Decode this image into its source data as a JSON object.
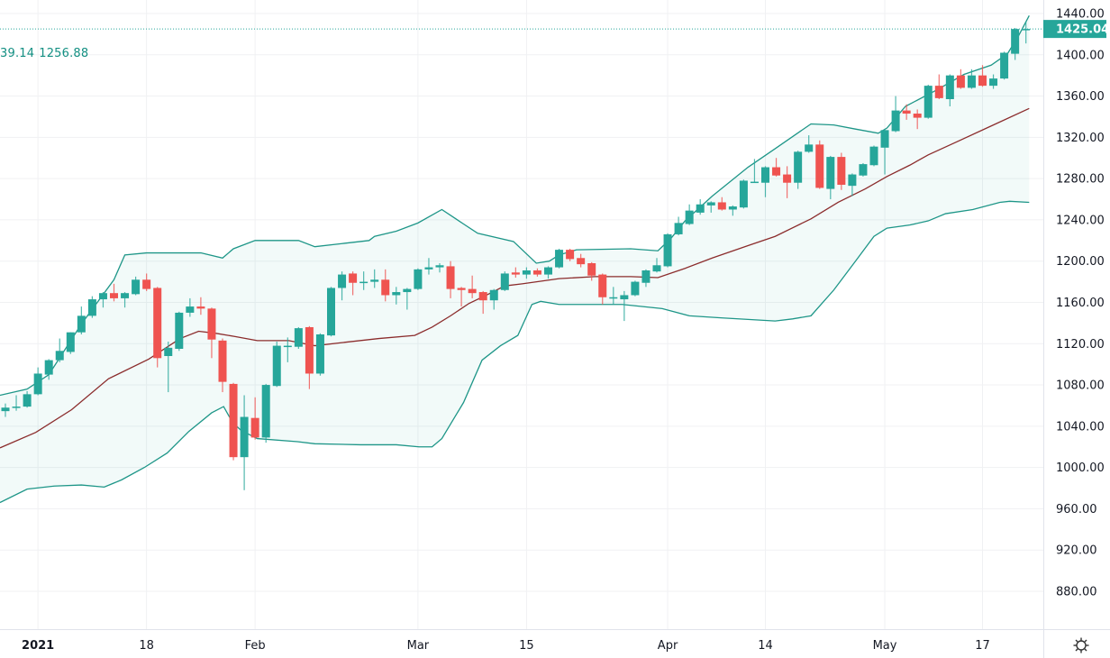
{
  "legend": {
    "values": [
      "39.14",
      "1256.88"
    ]
  },
  "colors": {
    "up": "#26a69a",
    "down": "#ef5350",
    "band": "#1e9688",
    "basis": "#8b2c2c",
    "fill": "#26a69a",
    "last_price_bg": "#26a69a"
  },
  "toolbar": {
    "settings_icon": "gear-icon"
  },
  "chart_data": {
    "type": "candlestick",
    "indicator": "bollinger-bands",
    "grid": true,
    "ylim": [
      860,
      1450
    ],
    "y_ticks": [
      "1440.00",
      "1400.00",
      "1360.00",
      "1320.00",
      "1280.00",
      "1240.00",
      "1200.00",
      "1160.00",
      "1120.00",
      "1080.00",
      "1040.00",
      "1000.00",
      "960.00",
      "920.00",
      "880.00"
    ],
    "last_price": "1425.04",
    "x_ticks": [
      {
        "label": "2021",
        "index": 3,
        "bold": true
      },
      {
        "label": "18",
        "index": 13
      },
      {
        "label": "Feb",
        "index": 23
      },
      {
        "label": "Mar",
        "index": 38
      },
      {
        "label": "15",
        "index": 48
      },
      {
        "label": "Apr",
        "index": 61
      },
      {
        "label": "14",
        "index": 70
      },
      {
        "label": "May",
        "index": 81
      },
      {
        "label": "17",
        "index": 90
      }
    ],
    "ohlc_fields": [
      "open",
      "high",
      "low",
      "close"
    ],
    "candles": [
      [
        1054.6,
        1062,
        1049,
        1058
      ],
      [
        1059,
        1070,
        1055,
        1059
      ],
      [
        1059,
        1074,
        1058,
        1071
      ],
      [
        1071,
        1097,
        1070,
        1091
      ],
      [
        1090,
        1105,
        1085,
        1104
      ],
      [
        1104,
        1125,
        1102,
        1113
      ],
      [
        1112,
        1131,
        1110,
        1131
      ],
      [
        1131,
        1156,
        1129,
        1147
      ],
      [
        1147,
        1166,
        1145,
        1163
      ],
      [
        1163,
        1170,
        1155,
        1169
      ],
      [
        1169,
        1178,
        1161,
        1164
      ],
      [
        1164,
        1170,
        1155,
        1169
      ],
      [
        1168,
        1185,
        1167,
        1182
      ],
      [
        1182,
        1188,
        1171,
        1173
      ],
      [
        1174,
        1175,
        1097,
        1106
      ],
      [
        1108,
        1122,
        1073,
        1116
      ],
      [
        1115,
        1151,
        1113,
        1150
      ],
      [
        1150,
        1164,
        1146,
        1156
      ],
      [
        1156,
        1165,
        1148,
        1154
      ],
      [
        1154,
        1155,
        1106,
        1124
      ],
      [
        1123,
        1125,
        1073,
        1083
      ],
      [
        1081,
        1082,
        1007,
        1010
      ],
      [
        1010,
        1070,
        978,
        1049
      ],
      [
        1048,
        1068,
        1027,
        1029
      ],
      [
        1029,
        1081,
        1024,
        1080
      ],
      [
        1079,
        1122,
        1078,
        1118
      ],
      [
        1118,
        1126,
        1102,
        1118
      ],
      [
        1117,
        1136,
        1115,
        1135
      ],
      [
        1136,
        1137,
        1076,
        1091
      ],
      [
        1091,
        1130,
        1089,
        1129
      ],
      [
        1128,
        1175,
        1127,
        1174
      ],
      [
        1174,
        1190,
        1162,
        1187
      ],
      [
        1188,
        1190,
        1167,
        1179
      ],
      [
        1180,
        1190,
        1172,
        1180
      ],
      [
        1180,
        1192,
        1174,
        1182
      ],
      [
        1182,
        1192,
        1161,
        1167
      ],
      [
        1167,
        1175,
        1158,
        1170
      ],
      [
        1170,
        1174,
        1153,
        1173
      ],
      [
        1173,
        1193,
        1172,
        1192
      ],
      [
        1192,
        1203,
        1187,
        1194
      ],
      [
        1194,
        1198,
        1189,
        1196
      ],
      [
        1195,
        1200,
        1164,
        1173
      ],
      [
        1174,
        1175,
        1156,
        1172
      ],
      [
        1173,
        1186,
        1164,
        1169
      ],
      [
        1170,
        1171,
        1149,
        1162
      ],
      [
        1162,
        1173,
        1153,
        1172
      ],
      [
        1172,
        1190,
        1171,
        1188
      ],
      [
        1189,
        1194,
        1184,
        1187
      ],
      [
        1187,
        1194,
        1183,
        1191
      ],
      [
        1191,
        1193,
        1185,
        1187
      ],
      [
        1187,
        1195,
        1183,
        1194
      ],
      [
        1194,
        1212,
        1193,
        1211
      ],
      [
        1211,
        1212,
        1200,
        1202
      ],
      [
        1203,
        1207,
        1194,
        1197
      ],
      [
        1198,
        1199,
        1181,
        1186
      ],
      [
        1187,
        1188,
        1158,
        1165
      ],
      [
        1165,
        1175,
        1158,
        1165
      ],
      [
        1163,
        1171,
        1142,
        1167
      ],
      [
        1167,
        1181,
        1166,
        1180
      ],
      [
        1179,
        1192,
        1175,
        1191
      ],
      [
        1190,
        1203,
        1189,
        1196
      ],
      [
        1195,
        1227,
        1194,
        1226
      ],
      [
        1226,
        1243,
        1225,
        1237
      ],
      [
        1236,
        1255,
        1235,
        1249
      ],
      [
        1247,
        1260,
        1245,
        1255
      ],
      [
        1254,
        1258,
        1247,
        1257
      ],
      [
        1257,
        1262,
        1249,
        1250
      ],
      [
        1250,
        1254,
        1244,
        1253
      ],
      [
        1252,
        1279,
        1251,
        1278
      ],
      [
        1277,
        1299,
        1276,
        1277
      ],
      [
        1276,
        1292,
        1262,
        1291
      ],
      [
        1291,
        1300,
        1282,
        1283
      ],
      [
        1284,
        1292,
        1261,
        1276
      ],
      [
        1276,
        1307,
        1270,
        1306
      ],
      [
        1306,
        1322,
        1305,
        1313
      ],
      [
        1313,
        1317,
        1270,
        1271
      ],
      [
        1270,
        1302,
        1260,
        1301
      ],
      [
        1301,
        1305,
        1269,
        1274
      ],
      [
        1273,
        1285,
        1263,
        1284
      ],
      [
        1283,
        1295,
        1282,
        1294
      ],
      [
        1293,
        1312,
        1292,
        1311
      ],
      [
        1310,
        1328,
        1284,
        1327
      ],
      [
        1326,
        1360,
        1325,
        1346
      ],
      [
        1346,
        1352,
        1337,
        1343
      ],
      [
        1343,
        1347,
        1328,
        1339
      ],
      [
        1339,
        1371,
        1338,
        1370
      ],
      [
        1370,
        1381,
        1357,
        1358
      ],
      [
        1357,
        1381,
        1350,
        1380
      ],
      [
        1380,
        1386,
        1367,
        1368
      ],
      [
        1368,
        1386,
        1367,
        1380
      ],
      [
        1380,
        1390,
        1369,
        1370
      ],
      [
        1370,
        1381,
        1367,
        1377
      ],
      [
        1377,
        1403,
        1376,
        1402
      ],
      [
        1401,
        1426,
        1395,
        1425
      ],
      [
        1425.04,
        1432,
        1411,
        1425.04
      ]
    ],
    "bands": {
      "upper": [
        [
          -0.5,
          1070
        ],
        [
          2,
          1076
        ],
        [
          4,
          1090
        ],
        [
          7,
          1139
        ],
        [
          10,
          1182
        ],
        [
          11,
          1206
        ],
        [
          13,
          1208
        ],
        [
          18,
          1208
        ],
        [
          20,
          1203
        ],
        [
          21,
          1212
        ],
        [
          23,
          1220
        ],
        [
          27,
          1220
        ],
        [
          28.5,
          1214
        ],
        [
          31,
          1217
        ],
        [
          33.5,
          1220
        ],
        [
          34,
          1224
        ],
        [
          36,
          1229
        ],
        [
          38,
          1237
        ],
        [
          40.2,
          1250
        ],
        [
          42.2,
          1236
        ],
        [
          43.5,
          1227
        ],
        [
          46.8,
          1219
        ],
        [
          48.9,
          1198
        ],
        [
          50.1,
          1200
        ],
        [
          51,
          1206
        ],
        [
          52.6,
          1211
        ],
        [
          57.6,
          1212
        ],
        [
          60.1,
          1210
        ],
        [
          61.3,
          1222
        ],
        [
          62.6,
          1239
        ],
        [
          65.1,
          1263
        ],
        [
          68.4,
          1291
        ],
        [
          70.9,
          1309
        ],
        [
          74.2,
          1333
        ],
        [
          76.3,
          1332
        ],
        [
          78.3,
          1328
        ],
        [
          80.4,
          1324
        ],
        [
          81.2,
          1329
        ],
        [
          82.9,
          1350
        ],
        [
          85.8,
          1366
        ],
        [
          88.3,
          1381
        ],
        [
          90.8,
          1390
        ],
        [
          92.3,
          1401
        ],
        [
          93.3,
          1418
        ],
        [
          94.3,
          1438
        ]
      ],
      "basis": [
        [
          -0.5,
          1019
        ],
        [
          2.8,
          1034
        ],
        [
          6.1,
          1056
        ],
        [
          9.5,
          1086
        ],
        [
          13.2,
          1105
        ],
        [
          16.1,
          1125
        ],
        [
          17.8,
          1132
        ],
        [
          19.4,
          1130
        ],
        [
          21.1,
          1127
        ],
        [
          23.2,
          1123
        ],
        [
          26.1,
          1123
        ],
        [
          28.5,
          1118
        ],
        [
          31,
          1121
        ],
        [
          34.4,
          1125
        ],
        [
          37.7,
          1128
        ],
        [
          39.3,
          1136
        ],
        [
          41,
          1147
        ],
        [
          42.7,
          1159
        ],
        [
          44.3,
          1167
        ],
        [
          46,
          1176
        ],
        [
          47.6,
          1178
        ],
        [
          51,
          1183
        ],
        [
          54.3,
          1185
        ],
        [
          57.6,
          1185
        ],
        [
          60.1,
          1184
        ],
        [
          62.6,
          1193
        ],
        [
          65.1,
          1203
        ],
        [
          68.4,
          1215
        ],
        [
          70.9,
          1224
        ],
        [
          74.2,
          1241
        ],
        [
          76.7,
          1257
        ],
        [
          79.2,
          1270
        ],
        [
          81.2,
          1282
        ],
        [
          83.3,
          1293
        ],
        [
          85,
          1303
        ],
        [
          87.5,
          1315
        ],
        [
          90.8,
          1331
        ],
        [
          94.3,
          1348
        ]
      ],
      "lower": [
        [
          -0.5,
          966
        ],
        [
          2,
          979
        ],
        [
          4.5,
          982
        ],
        [
          7,
          983
        ],
        [
          9.1,
          981
        ],
        [
          10.7,
          988
        ],
        [
          12.8,
          1000
        ],
        [
          14.9,
          1014
        ],
        [
          16.9,
          1035
        ],
        [
          19,
          1053
        ],
        [
          20.1,
          1059
        ],
        [
          20.9,
          1044
        ],
        [
          21.7,
          1036
        ],
        [
          23.2,
          1028
        ],
        [
          26.9,
          1025
        ],
        [
          28.5,
          1023
        ],
        [
          32.7,
          1022
        ],
        [
          36,
          1022
        ],
        [
          38.1,
          1020
        ],
        [
          39.3,
          1020
        ],
        [
          40.2,
          1028
        ],
        [
          42.2,
          1063
        ],
        [
          43.9,
          1104
        ],
        [
          45.6,
          1118
        ],
        [
          47.2,
          1128
        ],
        [
          48.5,
          1158
        ],
        [
          49.3,
          1161
        ],
        [
          51,
          1158
        ],
        [
          54.3,
          1158
        ],
        [
          56.8,
          1158
        ],
        [
          60.5,
          1154
        ],
        [
          63,
          1147
        ],
        [
          65.9,
          1145
        ],
        [
          70.9,
          1142
        ],
        [
          72.5,
          1144
        ],
        [
          74.2,
          1147
        ],
        [
          76.3,
          1172
        ],
        [
          78.3,
          1200
        ],
        [
          80,
          1224
        ],
        [
          81.2,
          1232
        ],
        [
          83.3,
          1235
        ],
        [
          85,
          1239
        ],
        [
          86.6,
          1246
        ],
        [
          89.1,
          1250
        ],
        [
          91.6,
          1257
        ],
        [
          92.5,
          1258
        ],
        [
          94.3,
          1257
        ]
      ]
    }
  }
}
